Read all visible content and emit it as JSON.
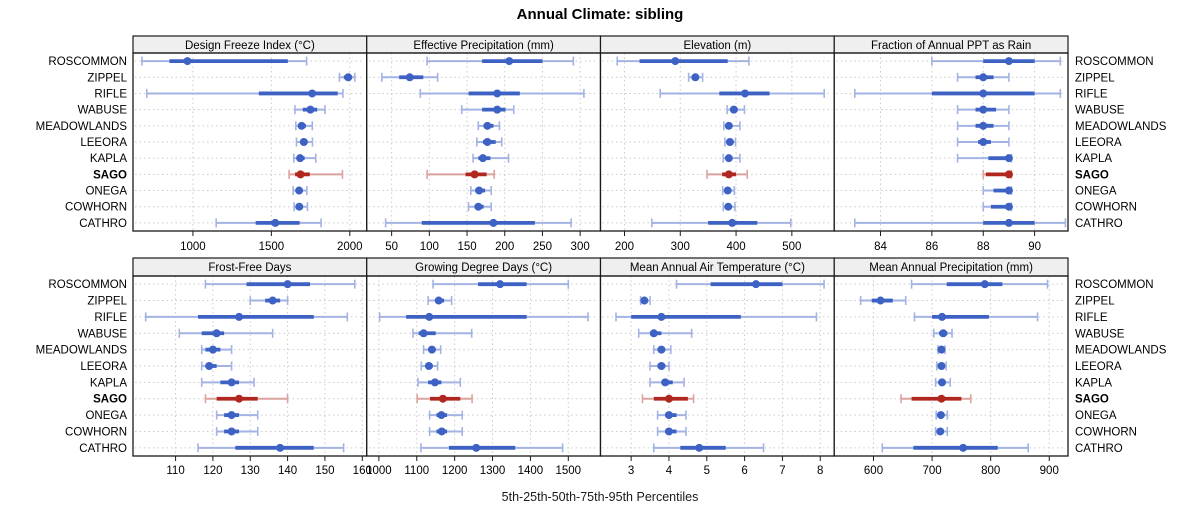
{
  "title": "Annual Climate: sibling",
  "caption": "5th-25th-50th-75th-95th Percentiles",
  "sites": [
    "ROSCOMMON",
    "ZIPPEL",
    "RIFLE",
    "WABUSE",
    "MEADOWLANDS",
    "LEEORA",
    "KAPLA",
    "SAGO",
    "ONEGA",
    "COWHORN",
    "CATHRO"
  ],
  "highlight_site": "SAGO",
  "colors": {
    "blue_main": "#3D62C4",
    "blue_light": "#A3B3E3",
    "red_main": "#B0271F",
    "red_light": "#DBA39D",
    "header_bg": "#EFEFEF",
    "grid": "#CBCBCB",
    "border": "#1A1A1A",
    "text": "#000000"
  },
  "chart_data": {
    "type": "dotplot-percentiles",
    "percentiles": [
      5,
      25,
      50,
      75,
      95
    ],
    "layout": {
      "rows": 2,
      "cols": 4,
      "legend": "none",
      "grid": "dotted"
    },
    "panels": [
      {
        "title": "Design Freeze Index (°C)",
        "xlim": [
          618,
          2108
        ],
        "ticks": [
          1000,
          1500,
          2000
        ],
        "series": [
          {
            "site": "ROSCOMMON",
            "values": [
              675,
              850,
              965,
              1605,
              1725
            ]
          },
          {
            "site": "ZIPPEL",
            "values": [
              1934,
              1962,
              1990,
              2012,
              2032
            ]
          },
          {
            "site": "RIFLE",
            "values": [
              706,
              1420,
              1760,
              1923,
              1956
            ]
          },
          {
            "site": "WABUSE",
            "values": [
              1650,
              1700,
              1749,
              1792,
              1842
            ]
          },
          {
            "site": "MEADOWLANDS",
            "values": [
              1656,
              1676,
              1693,
              1720,
              1761
            ]
          },
          {
            "site": "LEEORA",
            "values": [
              1660,
              1686,
              1707,
              1731,
              1762
            ]
          },
          {
            "site": "KAPLA",
            "values": [
              1643,
              1665,
              1683,
              1712,
              1783
            ]
          },
          {
            "site": "SAGO",
            "values": [
              1613,
              1651,
              1686,
              1745,
              1953
            ]
          },
          {
            "site": "ONEGA",
            "values": [
              1639,
              1660,
              1677,
              1698,
              1726
            ]
          },
          {
            "site": "COWHORN",
            "values": [
              1645,
              1663,
              1678,
              1701,
              1730
            ]
          },
          {
            "site": "CATHRO",
            "values": [
              1148,
              1400,
              1525,
              1680,
              1817
            ]
          }
        ]
      },
      {
        "title": "Effective Precipitation (mm)",
        "xlim": [
          17,
          327
        ],
        "ticks": [
          50,
          100,
          150,
          200,
          250,
          300
        ],
        "series": [
          {
            "site": "ROSCOMMON",
            "values": [
              97,
              170,
              206,
              250,
              291
            ]
          },
          {
            "site": "ZIPPEL",
            "values": [
              37,
              60,
              74,
              92,
              111
            ]
          },
          {
            "site": "RIFLE",
            "values": [
              88,
              152,
              190,
              220,
              305
            ]
          },
          {
            "site": "WABUSE",
            "values": [
              143,
              170,
              190,
              201,
              212
            ]
          },
          {
            "site": "MEADOWLANDS",
            "values": [
              165,
              172,
              177,
              185,
              193
            ]
          },
          {
            "site": "LEEORA",
            "values": [
              163,
              171,
              177,
              188,
              196
            ]
          },
          {
            "site": "KAPLA",
            "values": [
              158,
              165,
              171,
              181,
              205
            ]
          },
          {
            "site": "SAGO",
            "values": [
              97,
              148,
              160,
              176,
              186
            ]
          },
          {
            "site": "ONEGA",
            "values": [
              155,
              161,
              166,
              174,
              182
            ]
          },
          {
            "site": "COWHORN",
            "values": [
              152,
              160,
              165,
              172,
              182
            ]
          },
          {
            "site": "CATHRO",
            "values": [
              42,
              90,
              185,
              240,
              288
            ]
          }
        ]
      },
      {
        "title": "Elevation (m)",
        "xlim": [
          157,
          576
        ],
        "ticks": [
          200,
          300,
          400,
          500
        ],
        "series": [
          {
            "site": "ROSCOMMON",
            "values": [
              187,
              227,
              291,
              385,
              423
            ]
          },
          {
            "site": "ZIPPEL",
            "values": [
              315,
              322,
              327,
              333,
              340
            ]
          },
          {
            "site": "RIFLE",
            "values": [
              264,
              370,
              416,
              460,
              558
            ]
          },
          {
            "site": "WABUSE",
            "values": [
              384,
              391,
              396,
              403,
              415
            ]
          },
          {
            "site": "MEADOWLANDS",
            "values": [
              378,
              383,
              387,
              392,
              407
            ]
          },
          {
            "site": "LEEORA",
            "values": [
              380,
              385,
              389,
              393,
              399
            ]
          },
          {
            "site": "KAPLA",
            "values": [
              377,
              382,
              387,
              393,
              407
            ]
          },
          {
            "site": "SAGO",
            "values": [
              348,
              375,
              387,
              400,
              420
            ]
          },
          {
            "site": "ONEGA",
            "values": [
              376,
              381,
              385,
              390,
              397
            ]
          },
          {
            "site": "COWHORN",
            "values": [
              377,
              382,
              386,
              391,
              398
            ]
          },
          {
            "site": "CATHRO",
            "values": [
              249,
              350,
              393,
              438,
              498
            ]
          }
        ]
      },
      {
        "title": "Fraction of Annual PPT as Rain",
        "xlim": [
          82.2,
          91.3
        ],
        "ticks": [
          84,
          86,
          88,
          90
        ],
        "series": [
          {
            "site": "ROSCOMMON",
            "values": [
              86,
              88,
              89,
              90,
              91
            ]
          },
          {
            "site": "ZIPPEL",
            "values": [
              87,
              87.7,
              88,
              88.4,
              89
            ]
          },
          {
            "site": "RIFLE",
            "values": [
              83,
              86,
              88,
              90,
              91
            ]
          },
          {
            "site": "WABUSE",
            "values": [
              87,
              87.7,
              88,
              88.5,
              89
            ]
          },
          {
            "site": "MEADOWLANDS",
            "values": [
              87,
              87.7,
              88,
              88.4,
              89
            ]
          },
          {
            "site": "LEEORA",
            "values": [
              87,
              87.8,
              88,
              88.3,
              89
            ]
          },
          {
            "site": "KAPLA",
            "values": [
              87,
              88.2,
              89,
              89,
              89.1
            ]
          },
          {
            "site": "SAGO",
            "values": [
              88,
              88.1,
              89,
              89,
              89.1
            ]
          },
          {
            "site": "ONEGA",
            "values": [
              88,
              88.4,
              89,
              89,
              89.1
            ]
          },
          {
            "site": "COWHORN",
            "values": [
              88,
              88.3,
              89,
              89,
              89.1
            ]
          },
          {
            "site": "CATHRO",
            "values": [
              83,
              88,
              89,
              90,
              91.2
            ]
          }
        ]
      },
      {
        "title": "Frost-Free Days",
        "xlim": [
          98.6,
          161.2
        ],
        "ticks": [
          110,
          120,
          130,
          140,
          150,
          160
        ],
        "series": [
          {
            "site": "ROSCOMMON",
            "values": [
              118,
              129,
              140,
              146,
              158
            ]
          },
          {
            "site": "ZIPPEL",
            "values": [
              130,
              134,
              136,
              138,
              140
            ]
          },
          {
            "site": "RIFLE",
            "values": [
              102,
              116,
              127,
              147,
              156
            ]
          },
          {
            "site": "WABUSE",
            "values": [
              111,
              117,
              121,
              123,
              136
            ]
          },
          {
            "site": "MEADOWLANDS",
            "values": [
              117,
              118,
              120,
              122,
              125
            ]
          },
          {
            "site": "LEEORA",
            "values": [
              117,
              118,
              119,
              121,
              125
            ]
          },
          {
            "site": "KAPLA",
            "values": [
              117,
              122,
              125,
              127,
              131
            ]
          },
          {
            "site": "SAGO",
            "values": [
              118,
              121,
              127,
              132,
              140
            ]
          },
          {
            "site": "ONEGA",
            "values": [
              121,
              123,
              125,
              127,
              132
            ]
          },
          {
            "site": "COWHORN",
            "values": [
              121,
              123,
              125,
              127,
              132
            ]
          },
          {
            "site": "CATHRO",
            "values": [
              116,
              126,
              138,
              147,
              155
            ]
          }
        ]
      },
      {
        "title": "Growing Degree Days (°C)",
        "xlim": [
          968,
          1585
        ],
        "ticks": [
          1000,
          1100,
          1200,
          1300,
          1400,
          1500
        ],
        "series": [
          {
            "site": "ROSCOMMON",
            "values": [
              1143,
              1262,
              1320,
              1390,
              1500
            ]
          },
          {
            "site": "ZIPPEL",
            "values": [
              1130,
              1148,
              1158,
              1172,
              1192
            ]
          },
          {
            "site": "RIFLE",
            "values": [
              1002,
              1072,
              1133,
              1390,
              1552
            ]
          },
          {
            "site": "WABUSE",
            "values": [
              1090,
              1105,
              1118,
              1150,
              1245
            ]
          },
          {
            "site": "MEADOWLANDS",
            "values": [
              1118,
              1132,
              1140,
              1150,
              1163
            ]
          },
          {
            "site": "LEEORA",
            "values": [
              1112,
              1125,
              1132,
              1142,
              1155
            ]
          },
          {
            "site": "KAPLA",
            "values": [
              1103,
              1130,
              1148,
              1165,
              1215
            ]
          },
          {
            "site": "SAGO",
            "values": [
              1101,
              1135,
              1169,
              1215,
              1246
            ]
          },
          {
            "site": "ONEGA",
            "values": [
              1134,
              1152,
              1165,
              1180,
              1220
            ]
          },
          {
            "site": "COWHORN",
            "values": [
              1134,
              1152,
              1166,
              1180,
              1220
            ]
          },
          {
            "site": "CATHRO",
            "values": [
              1111,
              1185,
              1257,
              1360,
              1485
            ]
          }
        ]
      },
      {
        "title": "Mean Annual Air Temperature (°C)",
        "xlim": [
          2.19,
          8.37
        ],
        "ticks": [
          3,
          4,
          5,
          6,
          7,
          8
        ],
        "series": [
          {
            "site": "ROSCOMMON",
            "values": [
              4.2,
              5.1,
              6.3,
              7.0,
              8.1
            ]
          },
          {
            "site": "ZIPPEL",
            "values": [
              3.25,
              3.3,
              3.35,
              3.4,
              3.5
            ]
          },
          {
            "site": "RIFLE",
            "values": [
              2.6,
              3.0,
              3.8,
              5.9,
              7.9
            ]
          },
          {
            "site": "WABUSE",
            "values": [
              3.2,
              3.5,
              3.6,
              3.8,
              4.6
            ]
          },
          {
            "site": "MEADOWLANDS",
            "values": [
              3.6,
              3.7,
              3.8,
              3.9,
              4.05
            ]
          },
          {
            "site": "LEEORA",
            "values": [
              3.5,
              3.7,
              3.8,
              3.9,
              4.0
            ]
          },
          {
            "site": "KAPLA",
            "values": [
              3.5,
              3.8,
              3.9,
              4.1,
              4.4
            ]
          },
          {
            "site": "SAGO",
            "values": [
              3.3,
              3.6,
              4.0,
              4.5,
              4.65
            ]
          },
          {
            "site": "ONEGA",
            "values": [
              3.7,
              3.9,
              4.0,
              4.2,
              4.45
            ]
          },
          {
            "site": "COWHORN",
            "values": [
              3.7,
              3.9,
              4.0,
              4.2,
              4.45
            ]
          },
          {
            "site": "CATHRO",
            "values": [
              3.6,
              4.3,
              4.8,
              5.5,
              6.5
            ]
          }
        ]
      },
      {
        "title": "Mean Annual Precipitation (mm)",
        "xlim": [
          533,
          932
        ],
        "ticks": [
          600,
          700,
          800,
          900
        ],
        "series": [
          {
            "site": "ROSCOMMON",
            "values": [
              665,
              725,
              790,
              820,
              897
            ]
          },
          {
            "site": "ZIPPEL",
            "values": [
              578,
              597,
              612,
              633,
              655
            ]
          },
          {
            "site": "RIFLE",
            "values": [
              670,
              700,
              717,
              797,
              880
            ]
          },
          {
            "site": "WABUSE",
            "values": [
              703,
              712,
              719,
              726,
              734
            ]
          },
          {
            "site": "MEADOWLANDS",
            "values": [
              710,
              713,
              716,
              719,
              722
            ]
          },
          {
            "site": "LEEORA",
            "values": [
              708,
              712,
              716,
              720,
              724
            ]
          },
          {
            "site": "KAPLA",
            "values": [
              706,
              712,
              717,
              722,
              731
            ]
          },
          {
            "site": "SAGO",
            "values": [
              647,
              665,
              716,
              750,
              766
            ]
          },
          {
            "site": "ONEGA",
            "values": [
              707,
              711,
              715,
              720,
              726
            ]
          },
          {
            "site": "COWHORN",
            "values": [
              706,
              711,
              714,
              719,
              726
            ]
          },
          {
            "site": "CATHRO",
            "values": [
              615,
              668,
              753,
              812,
              864
            ]
          }
        ]
      }
    ]
  }
}
